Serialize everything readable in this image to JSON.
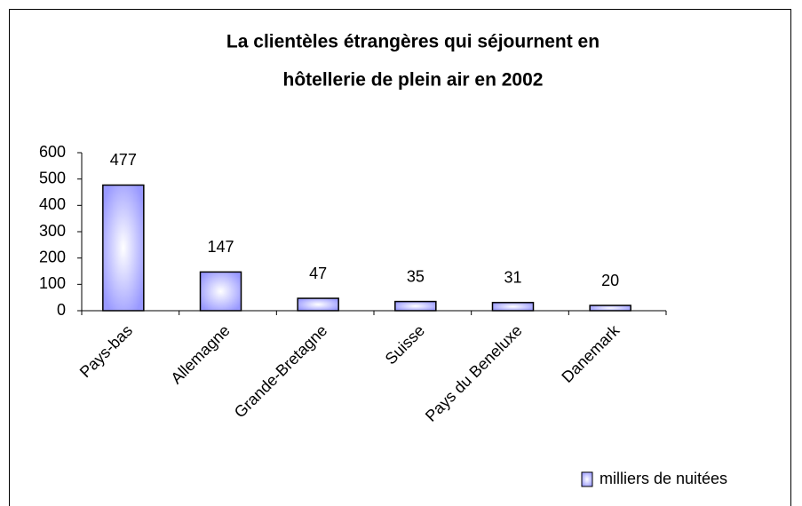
{
  "chart_data": {
    "type": "bar",
    "title": [
      "La clientèles étrangères qui séjournent en",
      "hôtellerie de plein air en 2002"
    ],
    "categories": [
      "Pays-bas",
      "Allemagne",
      "Grande-Bretagne",
      "Suisse",
      "Pays du Beneluxe",
      "Danemark"
    ],
    "series": [
      {
        "name": "milliers de nuitées",
        "color": "#9999ff",
        "values": [
          477,
          147,
          47,
          35,
          31,
          20
        ]
      }
    ],
    "ylim": [
      0,
      600
    ],
    "yticks": [
      0,
      100,
      200,
      300,
      400,
      500,
      600
    ],
    "grid": false,
    "legend": "bottom-right"
  }
}
